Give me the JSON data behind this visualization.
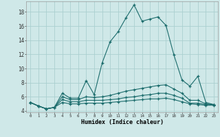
{
  "xlabel": "Humidex (Indice chaleur)",
  "background_color": "#cfe8e8",
  "grid_color": "#aad0d0",
  "line_color": "#1a6b6b",
  "x": [
    0,
    1,
    2,
    3,
    4,
    5,
    6,
    7,
    8,
    9,
    10,
    11,
    12,
    13,
    14,
    15,
    16,
    17,
    18,
    19,
    20,
    21,
    22,
    23
  ],
  "line1": [
    5.2,
    4.7,
    4.3,
    4.5,
    6.5,
    5.8,
    5.8,
    8.3,
    6.3,
    10.8,
    13.8,
    15.2,
    17.2,
    19.0,
    16.7,
    17.0,
    17.3,
    16.1,
    11.9,
    8.4,
    7.5,
    8.9,
    5.2,
    4.9
  ],
  "line2": [
    5.2,
    4.7,
    4.3,
    4.5,
    6.0,
    5.6,
    5.6,
    6.0,
    5.9,
    6.0,
    6.2,
    6.5,
    6.8,
    7.0,
    7.2,
    7.4,
    7.6,
    7.7,
    7.1,
    6.5,
    5.5,
    5.5,
    5.0,
    4.9
  ],
  "line3": [
    5.2,
    4.7,
    4.3,
    4.5,
    5.6,
    5.3,
    5.3,
    5.5,
    5.5,
    5.5,
    5.6,
    5.7,
    5.9,
    6.0,
    6.2,
    6.3,
    6.5,
    6.5,
    6.2,
    5.8,
    5.1,
    5.1,
    4.9,
    4.9
  ],
  "line4": [
    5.2,
    4.7,
    4.3,
    4.5,
    5.2,
    5.0,
    5.0,
    5.1,
    5.1,
    5.1,
    5.2,
    5.3,
    5.4,
    5.5,
    5.6,
    5.7,
    5.7,
    5.8,
    5.6,
    5.3,
    5.0,
    4.9,
    4.8,
    4.8
  ],
  "ylim": [
    3.8,
    19.5
  ],
  "xlim": [
    -0.5,
    23.5
  ],
  "yticks": [
    4,
    6,
    8,
    10,
    12,
    14,
    16,
    18
  ],
  "xticks": [
    0,
    1,
    2,
    3,
    4,
    5,
    6,
    7,
    8,
    9,
    10,
    11,
    12,
    13,
    14,
    15,
    16,
    17,
    18,
    19,
    20,
    21,
    22,
    23
  ],
  "xtick_labels": [
    "0",
    "1",
    "2",
    "3",
    "4",
    "5",
    "6",
    "7",
    "8",
    "9",
    "10",
    "11",
    "12",
    "13",
    "14",
    "15",
    "16",
    "17",
    "18",
    "19",
    "20",
    "21",
    "22",
    "23"
  ]
}
